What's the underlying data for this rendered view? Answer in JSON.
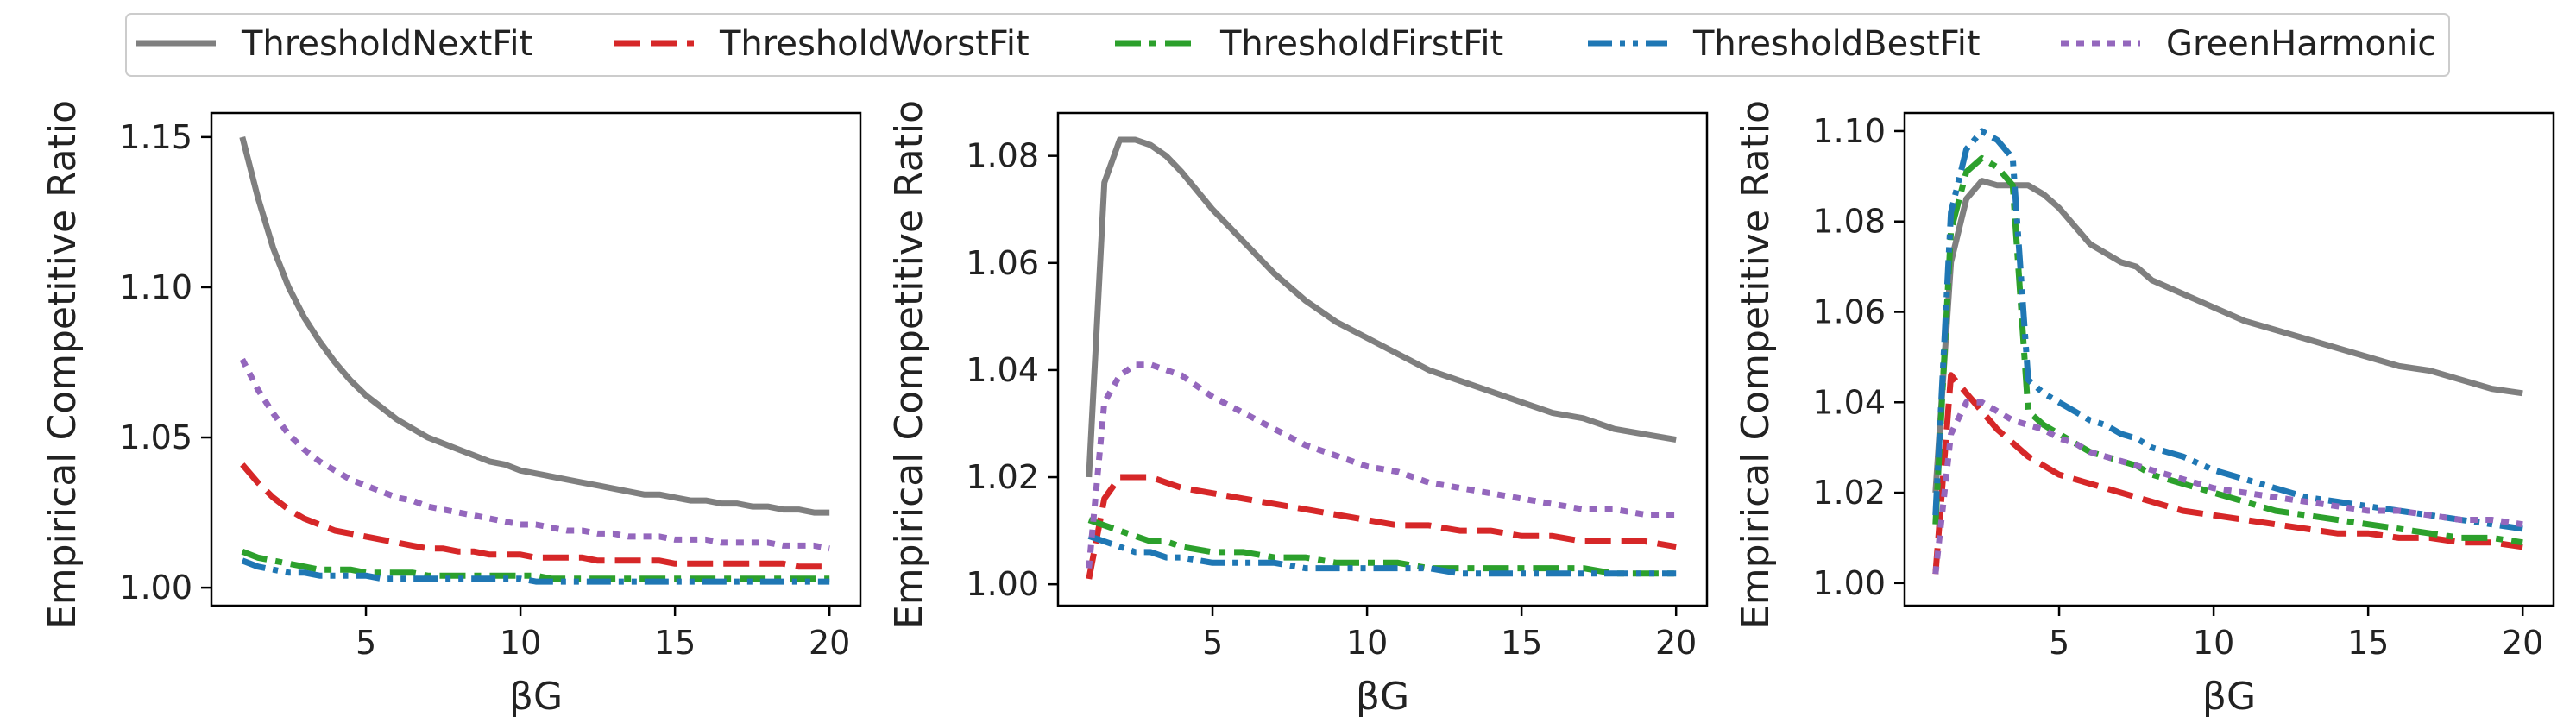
{
  "legend": [
    {
      "name": "ThresholdNextFit",
      "color": "#7f7f7f",
      "dash": "solid"
    },
    {
      "name": "ThresholdWorstFit",
      "color": "#d62728",
      "dash": "dashed"
    },
    {
      "name": "ThresholdFirstFit",
      "color": "#2ca02c",
      "dash": "dashdot"
    },
    {
      "name": "ThresholdBestFit",
      "color": "#1f77b4",
      "dash": "dashdotdot"
    },
    {
      "name": "GreenHarmonic",
      "color": "#9467bd",
      "dash": "dotted"
    }
  ],
  "chart_data": [
    {
      "type": "line",
      "xlabel": "βG",
      "ylabel": "Empirical Competitive Ratio",
      "xlim": [
        0,
        21
      ],
      "ylim": [
        0.994,
        1.158
      ],
      "xticks": [
        5,
        10,
        15,
        20
      ],
      "yticks": [
        1.0,
        1.05,
        1.1,
        1.15
      ],
      "yticklabels": [
        "1.00",
        "1.05",
        "1.10",
        "1.15"
      ],
      "x": [
        1,
        1.5,
        2,
        2.5,
        3,
        3.5,
        4,
        4.5,
        5,
        5.5,
        6,
        6.5,
        7,
        7.5,
        8,
        8.5,
        9,
        9.5,
        10,
        10.5,
        11,
        11.5,
        12,
        12.5,
        13,
        13.5,
        14,
        14.5,
        15,
        15.5,
        16,
        16.5,
        17,
        17.5,
        18,
        18.5,
        19,
        19.5,
        20
      ],
      "series": [
        {
          "name": "ThresholdNextFit",
          "values": [
            1.15,
            1.13,
            1.113,
            1.1,
            1.09,
            1.082,
            1.075,
            1.069,
            1.064,
            1.06,
            1.056,
            1.053,
            1.05,
            1.048,
            1.046,
            1.044,
            1.042,
            1.041,
            1.039,
            1.038,
            1.037,
            1.036,
            1.035,
            1.034,
            1.033,
            1.032,
            1.031,
            1.031,
            1.03,
            1.029,
            1.029,
            1.028,
            1.028,
            1.027,
            1.027,
            1.026,
            1.026,
            1.025,
            1.025
          ]
        },
        {
          "name": "ThresholdWorstFit",
          "values": [
            1.041,
            1.035,
            1.03,
            1.026,
            1.023,
            1.021,
            1.019,
            1.018,
            1.017,
            1.016,
            1.015,
            1.014,
            1.013,
            1.013,
            1.012,
            1.012,
            1.011,
            1.011,
            1.011,
            1.01,
            1.01,
            1.01,
            1.01,
            1.009,
            1.009,
            1.009,
            1.009,
            1.009,
            1.008,
            1.008,
            1.008,
            1.008,
            1.008,
            1.008,
            1.008,
            1.008,
            1.007,
            1.007,
            1.007
          ]
        },
        {
          "name": "ThresholdFirstFit",
          "values": [
            1.012,
            1.01,
            1.009,
            1.008,
            1.007,
            1.006,
            1.006,
            1.006,
            1.005,
            1.005,
            1.005,
            1.005,
            1.004,
            1.004,
            1.004,
            1.004,
            1.004,
            1.004,
            1.004,
            1.004,
            1.003,
            1.003,
            1.003,
            1.003,
            1.003,
            1.003,
            1.003,
            1.003,
            1.003,
            1.003,
            1.003,
            1.003,
            1.003,
            1.003,
            1.003,
            1.003,
            1.003,
            1.003,
            1.003
          ]
        },
        {
          "name": "ThresholdBestFit",
          "values": [
            1.009,
            1.007,
            1.006,
            1.005,
            1.005,
            1.004,
            1.004,
            1.004,
            1.004,
            1.003,
            1.003,
            1.003,
            1.003,
            1.003,
            1.003,
            1.003,
            1.003,
            1.003,
            1.003,
            1.002,
            1.002,
            1.002,
            1.002,
            1.002,
            1.002,
            1.002,
            1.002,
            1.002,
            1.002,
            1.002,
            1.002,
            1.002,
            1.002,
            1.002,
            1.002,
            1.002,
            1.002,
            1.002,
            1.002
          ]
        },
        {
          "name": "GreenHarmonic",
          "values": [
            1.076,
            1.066,
            1.058,
            1.051,
            1.046,
            1.042,
            1.039,
            1.036,
            1.034,
            1.032,
            1.03,
            1.029,
            1.027,
            1.026,
            1.025,
            1.024,
            1.023,
            1.022,
            1.021,
            1.021,
            1.02,
            1.019,
            1.019,
            1.018,
            1.018,
            1.017,
            1.017,
            1.017,
            1.016,
            1.016,
            1.016,
            1.015,
            1.015,
            1.015,
            1.015,
            1.014,
            1.014,
            1.014,
            1.013
          ]
        }
      ]
    },
    {
      "type": "line",
      "xlabel": "βG",
      "ylabel": "Empirical Competitive Ratio",
      "xlim": [
        0,
        21
      ],
      "ylim": [
        0.996,
        1.088
      ],
      "xticks": [
        5,
        10,
        15,
        20
      ],
      "yticks": [
        1.0,
        1.02,
        1.04,
        1.06,
        1.08
      ],
      "yticklabels": [
        "1.00",
        "1.02",
        "1.04",
        "1.06",
        "1.08"
      ],
      "x": [
        1,
        1.5,
        2,
        2.5,
        3,
        3.5,
        4,
        5,
        6,
        7,
        8,
        9,
        10,
        11,
        12,
        13,
        14,
        15,
        16,
        17,
        18,
        19,
        20
      ],
      "series": [
        {
          "name": "ThresholdNextFit",
          "values": [
            1.02,
            1.075,
            1.083,
            1.083,
            1.082,
            1.08,
            1.077,
            1.07,
            1.064,
            1.058,
            1.053,
            1.049,
            1.046,
            1.043,
            1.04,
            1.038,
            1.036,
            1.034,
            1.032,
            1.031,
            1.029,
            1.028,
            1.027
          ]
        },
        {
          "name": "ThresholdWorstFit",
          "values": [
            1.001,
            1.016,
            1.02,
            1.02,
            1.02,
            1.019,
            1.018,
            1.017,
            1.016,
            1.015,
            1.014,
            1.013,
            1.012,
            1.011,
            1.011,
            1.01,
            1.01,
            1.009,
            1.009,
            1.008,
            1.008,
            1.008,
            1.007
          ]
        },
        {
          "name": "ThresholdFirstFit",
          "values": [
            1.012,
            1.011,
            1.01,
            1.009,
            1.008,
            1.008,
            1.007,
            1.006,
            1.006,
            1.005,
            1.005,
            1.004,
            1.004,
            1.004,
            1.003,
            1.003,
            1.003,
            1.003,
            1.003,
            1.003,
            1.002,
            1.002,
            1.002
          ]
        },
        {
          "name": "ThresholdBestFit",
          "values": [
            1.009,
            1.008,
            1.007,
            1.006,
            1.006,
            1.005,
            1.005,
            1.004,
            1.004,
            1.004,
            1.003,
            1.003,
            1.003,
            1.003,
            1.003,
            1.002,
            1.002,
            1.002,
            1.002,
            1.002,
            1.002,
            1.002,
            1.002
          ]
        },
        {
          "name": "GreenHarmonic",
          "values": [
            1.003,
            1.034,
            1.039,
            1.041,
            1.041,
            1.04,
            1.039,
            1.035,
            1.032,
            1.029,
            1.026,
            1.024,
            1.022,
            1.021,
            1.019,
            1.018,
            1.017,
            1.016,
            1.015,
            1.014,
            1.014,
            1.013,
            1.013
          ]
        }
      ]
    },
    {
      "type": "line",
      "xlabel": "βG",
      "ylabel": "Empirical Competitive Ratio",
      "xlim": [
        0,
        21
      ],
      "ylim": [
        0.995,
        1.104
      ],
      "xticks": [
        5,
        10,
        15,
        20
      ],
      "yticks": [
        1.0,
        1.02,
        1.04,
        1.06,
        1.08,
        1.1
      ],
      "yticklabels": [
        "1.00",
        "1.02",
        "1.04",
        "1.06",
        "1.08",
        "1.10"
      ],
      "x": [
        1,
        1.5,
        2,
        2.5,
        3,
        3.5,
        4,
        4.5,
        5,
        5.5,
        6,
        6.5,
        7,
        7.5,
        8,
        9,
        10,
        11,
        12,
        13,
        14,
        15,
        16,
        17,
        18,
        19,
        20
      ],
      "series": [
        {
          "name": "ThresholdNextFit",
          "values": [
            1.02,
            1.071,
            1.085,
            1.089,
            1.088,
            1.088,
            1.088,
            1.086,
            1.083,
            1.079,
            1.075,
            1.073,
            1.071,
            1.07,
            1.067,
            1.064,
            1.061,
            1.058,
            1.056,
            1.054,
            1.052,
            1.05,
            1.048,
            1.047,
            1.045,
            1.043,
            1.042
          ]
        },
        {
          "name": "ThresholdWorstFit",
          "values": [
            1.002,
            1.046,
            1.042,
            1.038,
            1.034,
            1.031,
            1.028,
            1.026,
            1.024,
            1.023,
            1.022,
            1.021,
            1.02,
            1.019,
            1.018,
            1.016,
            1.015,
            1.014,
            1.013,
            1.012,
            1.011,
            1.011,
            1.01,
            1.01,
            1.009,
            1.009,
            1.008
          ]
        },
        {
          "name": "ThresholdFirstFit",
          "values": [
            1.013,
            1.078,
            1.091,
            1.094,
            1.092,
            1.088,
            1.038,
            1.035,
            1.033,
            1.031,
            1.029,
            1.028,
            1.027,
            1.026,
            1.024,
            1.022,
            1.02,
            1.018,
            1.016,
            1.015,
            1.014,
            1.013,
            1.012,
            1.011,
            1.01,
            1.01,
            1.009
          ]
        },
        {
          "name": "ThresholdBestFit",
          "values": [
            1.015,
            1.082,
            1.096,
            1.1,
            1.098,
            1.094,
            1.045,
            1.042,
            1.04,
            1.038,
            1.036,
            1.035,
            1.033,
            1.032,
            1.03,
            1.028,
            1.025,
            1.023,
            1.021,
            1.019,
            1.018,
            1.017,
            1.016,
            1.015,
            1.014,
            1.013,
            1.012
          ]
        },
        {
          "name": "GreenHarmonic",
          "values": [
            1.002,
            1.033,
            1.04,
            1.04,
            1.038,
            1.036,
            1.035,
            1.034,
            1.032,
            1.031,
            1.029,
            1.028,
            1.027,
            1.026,
            1.025,
            1.023,
            1.021,
            1.02,
            1.019,
            1.018,
            1.017,
            1.016,
            1.016,
            1.015,
            1.014,
            1.014,
            1.013
          ]
        }
      ]
    }
  ]
}
